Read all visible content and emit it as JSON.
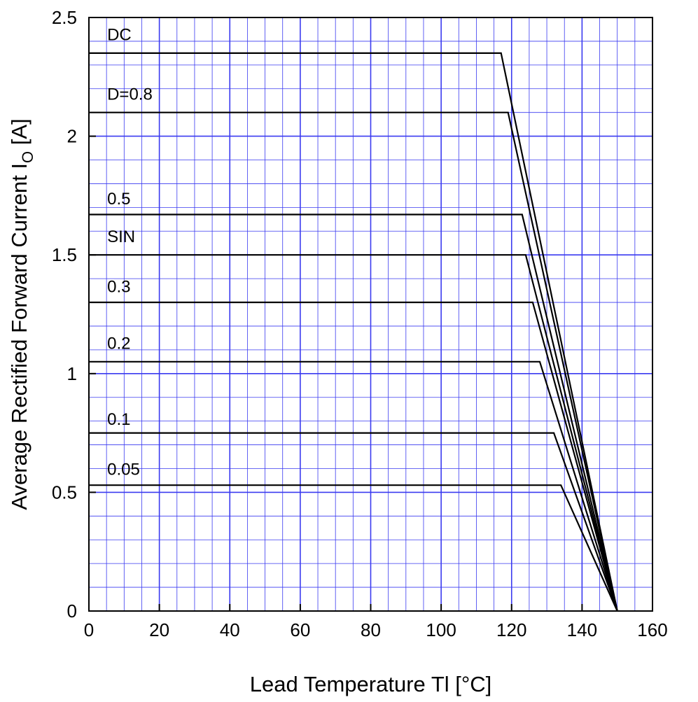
{
  "chart_data": {
    "type": "line",
    "xlabel": "Lead Temperature  Tl  [°C]",
    "ylabel_main": "Average Rectified Forward Current  I",
    "ylabel_sub": "O",
    "ylabel_unit": " [A]",
    "xlim": [
      0,
      160
    ],
    "ylim": [
      0,
      2.5
    ],
    "x_ticks": [
      0,
      20,
      40,
      60,
      80,
      100,
      120,
      140,
      160
    ],
    "y_ticks": [
      0,
      0.5,
      1,
      1.5,
      2,
      2.5
    ],
    "x_tick_labels": [
      "0",
      "20",
      "40",
      "60",
      "80",
      "100",
      "120",
      "140",
      "160"
    ],
    "y_tick_labels": [
      "0",
      "0.5",
      "1",
      "1.5",
      "2",
      "2.5"
    ],
    "grid": true,
    "x_minor_step": 5,
    "y_minor_step": 0.1,
    "colors": {
      "grid": "#3a3af0",
      "line": "#000000",
      "axis": "#000000"
    },
    "series": [
      {
        "name": "DC",
        "points": [
          [
            0,
            2.35
          ],
          [
            117,
            2.35
          ],
          [
            150,
            0
          ]
        ],
        "label_at": [
          3,
          2.43
        ]
      },
      {
        "name": "D=0.8",
        "points": [
          [
            0,
            2.1
          ],
          [
            119,
            2.1
          ],
          [
            150,
            0
          ]
        ],
        "label_at": [
          3,
          2.18
        ]
      },
      {
        "name": "0.5",
        "points": [
          [
            0,
            1.67
          ],
          [
            123,
            1.67
          ],
          [
            150,
            0
          ]
        ],
        "label_at": [
          3,
          1.74
        ]
      },
      {
        "name": "SIN",
        "points": [
          [
            0,
            1.5
          ],
          [
            124,
            1.5
          ],
          [
            150,
            0
          ]
        ],
        "label_at": [
          3,
          1.58
        ]
      },
      {
        "name": "0.3",
        "points": [
          [
            0,
            1.3
          ],
          [
            126,
            1.3
          ],
          [
            150,
            0
          ]
        ],
        "label_at": [
          3,
          1.37
        ]
      },
      {
        "name": "0.2",
        "points": [
          [
            0,
            1.05
          ],
          [
            128,
            1.05
          ],
          [
            150,
            0
          ]
        ],
        "label_at": [
          3,
          1.13
        ]
      },
      {
        "name": "0.1",
        "points": [
          [
            0,
            0.75
          ],
          [
            132,
            0.75
          ],
          [
            150,
            0
          ]
        ],
        "label_at": [
          3,
          0.81
        ]
      },
      {
        "name": "0.05",
        "points": [
          [
            0,
            0.53
          ],
          [
            134,
            0.53
          ],
          [
            150,
            0
          ]
        ],
        "label_at": [
          3,
          0.6
        ]
      }
    ]
  }
}
